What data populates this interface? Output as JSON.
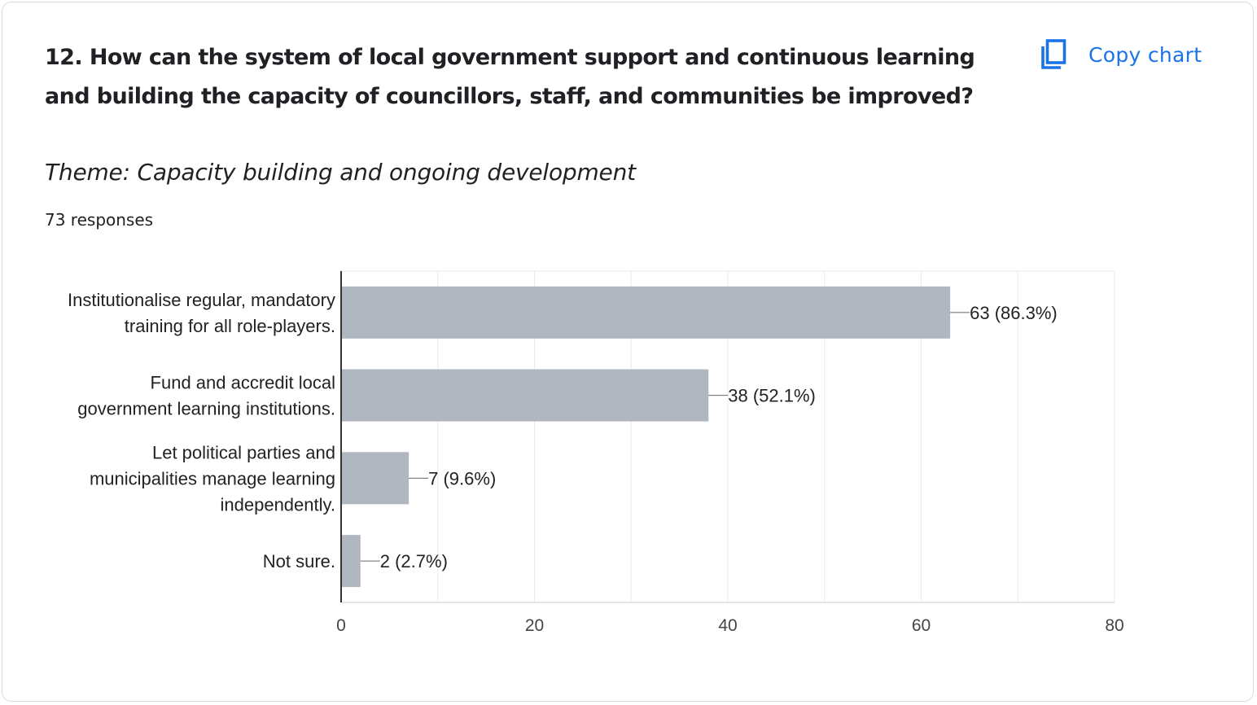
{
  "question": {
    "line1": "12. How can the system of local government support and continuous learning",
    "line2": "and building the capacity of councillors, staff, and communities be improved?"
  },
  "copy_chart": {
    "label": "Copy chart",
    "icon": "copy-icon"
  },
  "theme": "Theme: Capacity building and ongoing development",
  "responses": "73 responses",
  "colors": {
    "bar": "#b0b7c0",
    "accent": "#1a73e8",
    "grid": "#ebebeb",
    "axis": "#333333",
    "text": "#202124"
  },
  "chart_data": {
    "type": "bar",
    "orientation": "horizontal",
    "categories": [
      [
        "Institutionalise regular, mandatory",
        "training for all role-players."
      ],
      [
        "Fund and accredit local",
        "government learning institutions."
      ],
      [
        "Let political parties and",
        "municipalities manage learning",
        "independently."
      ],
      [
        "Not sure."
      ]
    ],
    "values": [
      63,
      38,
      7,
      2
    ],
    "data_labels": [
      "63 (86.3%)",
      "38 (52.1%)",
      "7 (9.6%)",
      "2 (2.7%)"
    ],
    "xlim": [
      0,
      80
    ],
    "xticks": [
      0,
      20,
      40,
      60,
      80
    ],
    "grid": true
  }
}
